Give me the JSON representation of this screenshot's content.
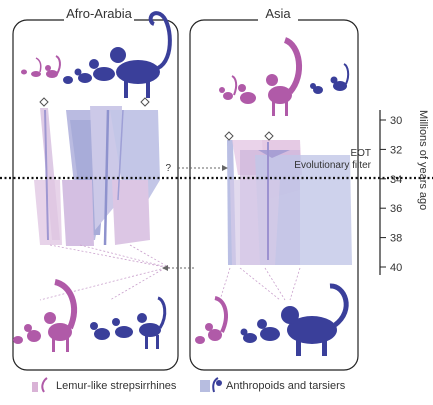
{
  "panels": {
    "left_title": "Afro-Arabia",
    "right_title": "Asia"
  },
  "axis": {
    "label": "Millions of years ago",
    "ticks": [
      "30",
      "32",
      "34",
      "36",
      "38",
      "40"
    ]
  },
  "annotations": {
    "eot": "EOT",
    "filter": "Evolutionary filter",
    "question": "?"
  },
  "legend": {
    "items": [
      {
        "label": "Lemur-like strepsirrhines",
        "color": "#b05aa8",
        "swatch": "#d9b3d6"
      },
      {
        "label": "Anthropoids and tarsiers",
        "color": "#3a3f9a",
        "swatch": "#b7bde0"
      }
    ]
  },
  "colors": {
    "lemur": "#b05aa8",
    "anthropoid": "#3a3f9a",
    "lemur_fill": "#d9b3d6",
    "anthropoid_fill": "#b4badf"
  }
}
